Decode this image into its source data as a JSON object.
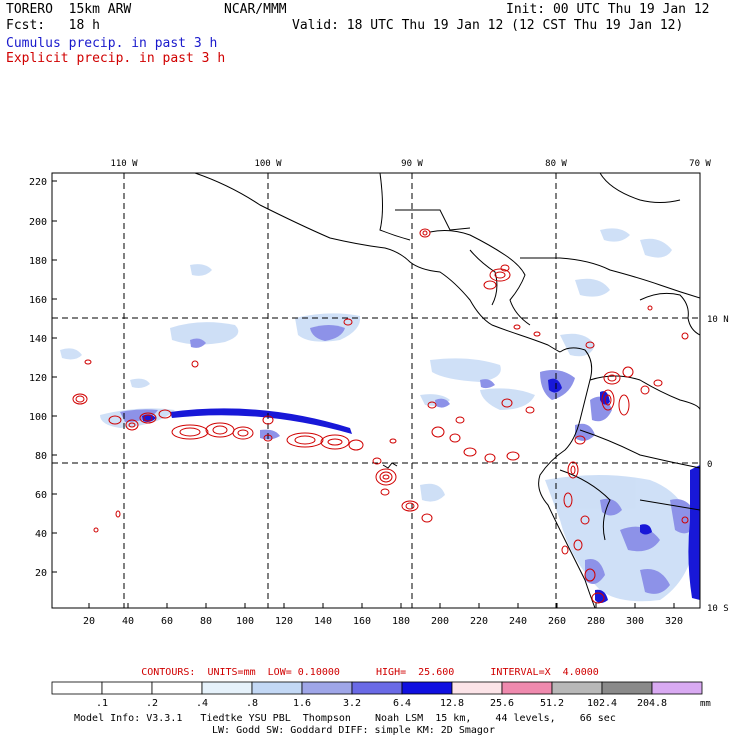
{
  "header": {
    "model": "TORERO  15km ARW",
    "center": "NCAR/MMM",
    "init": "Init: 00 UTC Thu 19 Jan 12",
    "fcst": "Fcst:   18 h",
    "valid": "Valid: 18 UTC Thu 19 Jan 12 (12 CST Thu 19 Jan 12)",
    "field1": "Cumulus precip. in past 3 h",
    "field2": "Explicit precip. in past 3 h",
    "field1_color": "#1a1acc",
    "field2_color": "#d00000"
  },
  "map": {
    "lon_labels": [
      "110 W",
      "100 W",
      "90 W",
      "80 W",
      "70 W"
    ],
    "lat_labels": [
      "10 N",
      "0",
      "10 S"
    ],
    "y_ticks": [
      "220",
      "200",
      "180",
      "160",
      "140",
      "120",
      "100",
      "80",
      "60",
      "40",
      "20"
    ],
    "x_ticks": [
      "20",
      "40",
      "60",
      "80",
      "100",
      "120",
      "140",
      "160",
      "180",
      "200",
      "220",
      "240",
      "260",
      "280",
      "300",
      "320"
    ]
  },
  "contours_line": "CONTOURS:  UNITS=mm  LOW= 0.10000      HIGH=  25.600      INTERVAL=X  4.0000",
  "legend": {
    "unit": "mm",
    "labels": [
      ".1",
      ".2",
      ".4",
      ".8",
      "1.6",
      "3.2",
      "6.4",
      "12.8",
      "25.6",
      "51.2",
      "102.4",
      "204.8"
    ],
    "colors": [
      "#ffffff",
      "#ffffff",
      "#ffffff",
      "#e6f2fb",
      "#c3d8f5",
      "#9fa6e8",
      "#6a6ae6",
      "#1010e0",
      "#fce4e8",
      "#ef8aae",
      "#b8b8b8",
      "#8a8a8a",
      "#d9aaf2"
    ]
  },
  "footer": {
    "line1": "Model Info: V3.3.1   Tiedtke YSU PBL  Thompson    Noah LSM  15 km,    44 levels,    66 sec",
    "line2": "LW: Godd SW: Goddard DIFF: simple KM: 2D Smagor"
  }
}
